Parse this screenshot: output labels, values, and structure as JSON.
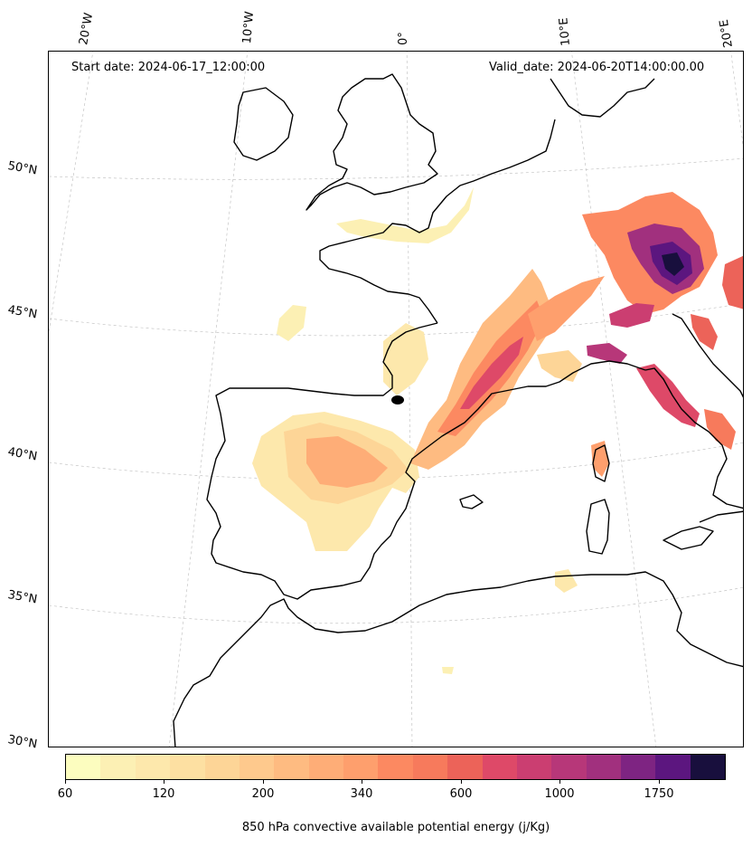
{
  "map": {
    "start_date_text": "Start date: 2024-06-17_12:00:00",
    "valid_date_text": "Valid_date: 2024-06-20T14:00:00.00",
    "lon_labels": [
      "20°W",
      "10°W",
      "0°",
      "10°E",
      "20°E"
    ],
    "lat_labels": [
      "50°N",
      "45°N",
      "40°N",
      "35°N",
      "30°N"
    ],
    "coastline_color": "#000000",
    "gridline_color": "#bbbbbb",
    "storm_marker_color": "#000000"
  },
  "colorbar": {
    "label": "850 hPa convective available potential energy (j/Kg)",
    "tick_labels": [
      "60",
      "120",
      "200",
      "340",
      "600",
      "1000",
      "1750"
    ],
    "colors": [
      "#fcfdbf",
      "#fcf0b4",
      "#fde8ac",
      "#fde0a2",
      "#fdd597",
      "#fec98d",
      "#febb81",
      "#fead77",
      "#fe9f6d",
      "#fc8961",
      "#f77a5c",
      "#ec6359",
      "#de4968",
      "#cb3e71",
      "#b73779",
      "#a1307e",
      "#7e2482",
      "#5c167f",
      "#180f3d"
    ],
    "scale": "log"
  }
}
